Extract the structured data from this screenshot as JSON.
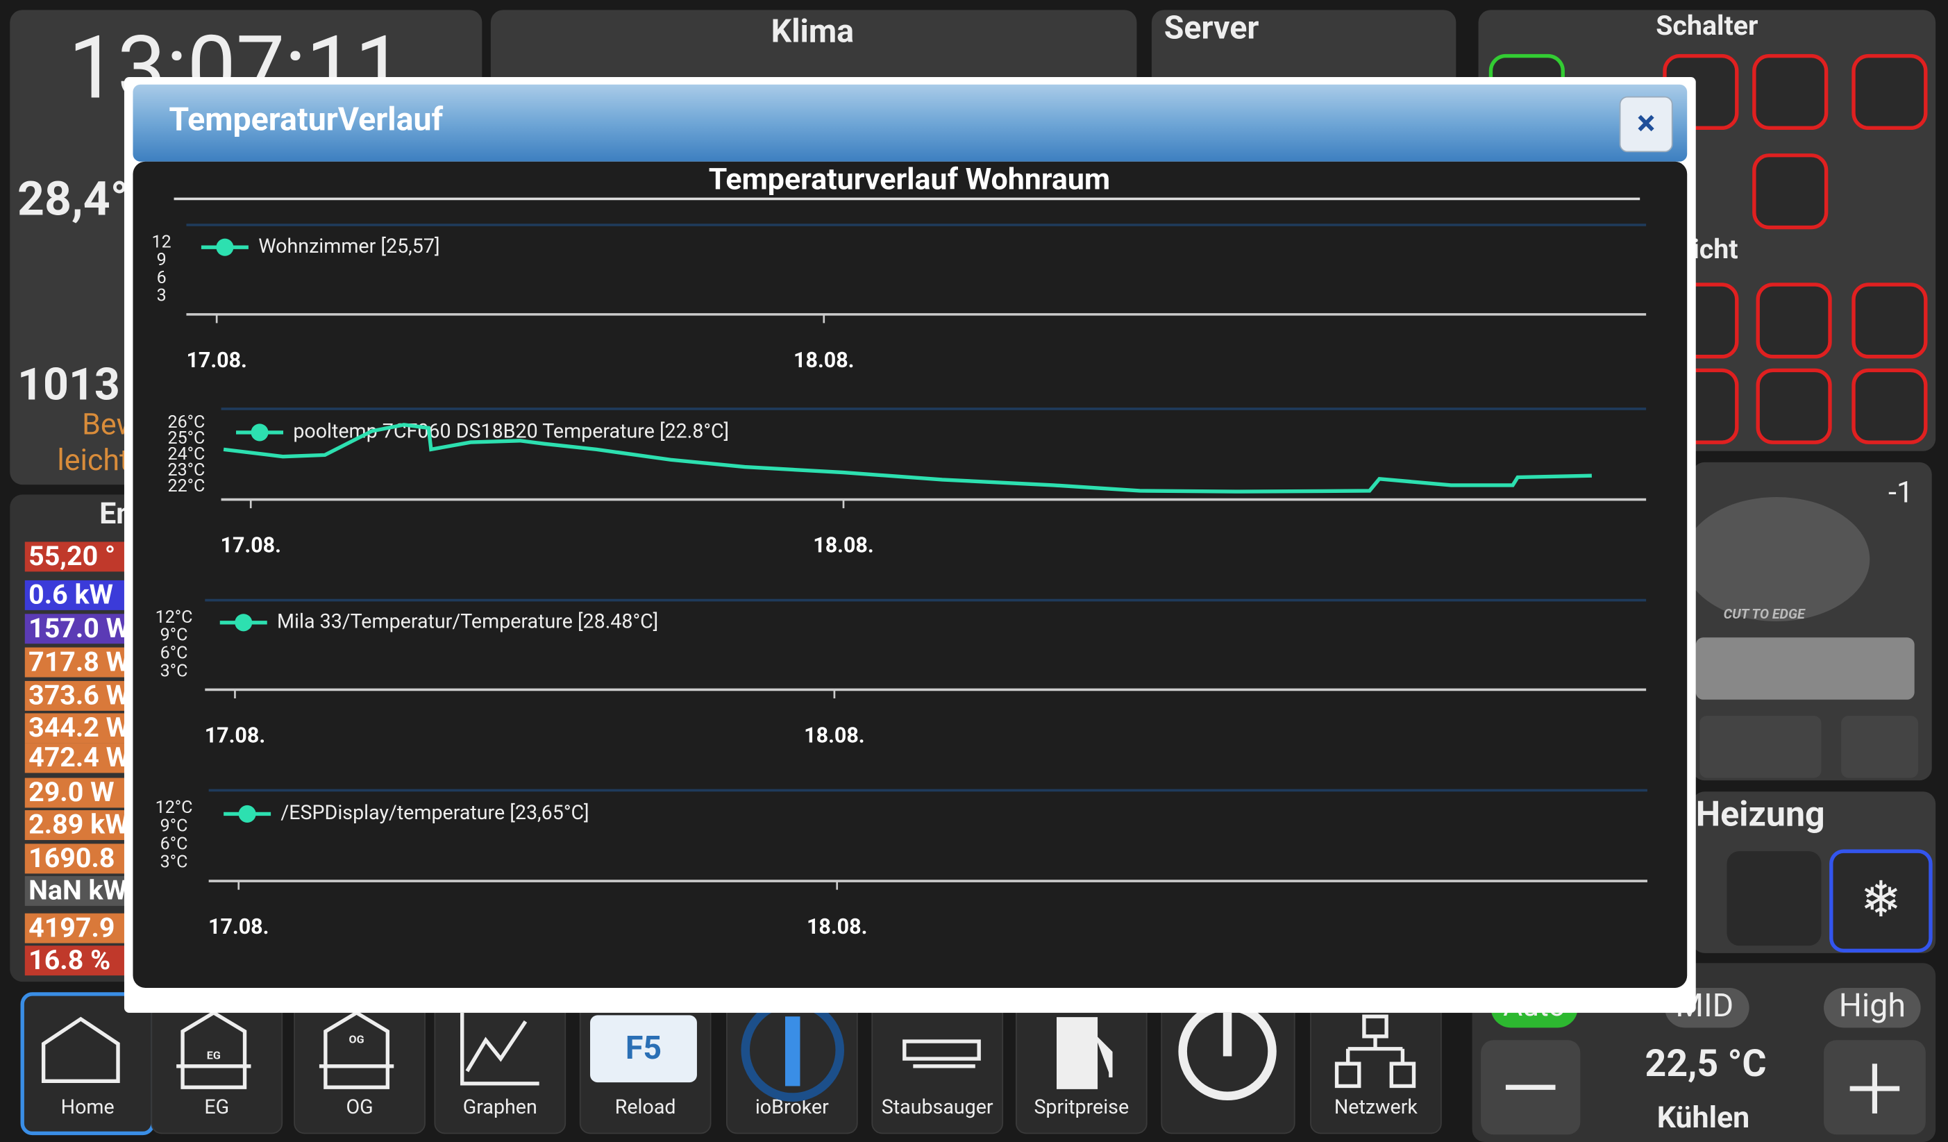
{
  "dashboard": {
    "clock": "13:07:11",
    "outdoor_temp": "28,4°",
    "pressure": "1013",
    "weather": [
      "Bew",
      "leicht"
    ],
    "energy_title": "En",
    "energy": [
      "55,20 °",
      "0.6 kW",
      "157.0 W",
      "717.8 W",
      "373.6 W",
      "344.2 W",
      "472.4 W",
      "29.0 W",
      "2.89 kW",
      "1690.8",
      "NaN kW",
      "4197.9",
      "16.8 %"
    ],
    "klima": "Klima",
    "server": "Server",
    "schalter": "Schalter",
    "licht": "icht",
    "mower_level": "-1",
    "mower_brand": "CUT TO EDGE",
    "heizung": "Heizung",
    "fan": [
      "Auto",
      "MID",
      "High"
    ],
    "setpoint": "22,5 °C",
    "mode": "Kühlen"
  },
  "nav": {
    "labels": [
      "Home",
      "EG",
      "OG",
      "Graphen",
      "Reload",
      "ioBroker",
      "Staubsauger",
      "Spritpreise",
      "Netzwerk"
    ],
    "reload_key": "F5",
    "icon_eg": "EG",
    "icon_og": "OG"
  },
  "modal": {
    "title": "TemperaturVerlauf",
    "close": "×",
    "chart_title": "Temperaturverlauf Wohnraum"
  },
  "chart_data": [
    {
      "type": "line",
      "series": [
        {
          "name": "Wohnzimmer [25,57]",
          "color": "#2de0b0"
        }
      ],
      "xlim": [
        -1.2,
        56.5
      ],
      "xticks": [
        {
          "value": 0,
          "label": "17.08."
        },
        {
          "value": 24,
          "label": "18.08."
        }
      ],
      "ylim": [
        0,
        15
      ],
      "yticks": [
        3,
        6,
        9,
        12
      ]
    },
    {
      "type": "line",
      "series": [
        {
          "name": "pooltemp 7CF060 DS18B20  Temperature [22.8°C]",
          "color": "#2de0b0",
          "x": [
            -1.1,
            1.3,
            3.0,
            4.9,
            6.2,
            7.2,
            7.3,
            8.9,
            10.9,
            11.9,
            14.0,
            17.0,
            20.0,
            24.0,
            28.0,
            32.5,
            36.0,
            40.1,
            45.3,
            45.7,
            48.6,
            51.1,
            51.3,
            54.3
          ],
          "values": [
            24.35,
            23.9,
            24.0,
            25.5,
            25.9,
            25.7,
            24.35,
            24.8,
            24.9,
            24.7,
            24.35,
            23.7,
            23.25,
            22.9,
            22.45,
            22.1,
            21.75,
            21.7,
            21.75,
            22.5,
            22.1,
            22.1,
            22.6,
            22.7
          ]
        }
      ],
      "xlim": [
        -1.2,
        56.5
      ],
      "xticks": [
        {
          "value": 0,
          "label": "17.08."
        },
        {
          "value": 24,
          "label": "18.08."
        }
      ],
      "ylim": [
        21.2,
        26.9
      ],
      "yticks": [
        {
          "value": 22,
          "label": "22°C"
        },
        {
          "value": 23,
          "label": "23°C"
        },
        {
          "value": 24,
          "label": "24°C"
        },
        {
          "value": 25,
          "label": "25°C"
        },
        {
          "value": 26,
          "label": "26°C"
        }
      ]
    },
    {
      "type": "line",
      "series": [
        {
          "name": "Mila 33/Temperatur/Temperature [28.48°C]",
          "color": "#2de0b0"
        }
      ],
      "xlim": [
        -1.2,
        56.5
      ],
      "xticks": [
        {
          "value": 0,
          "label": "17.08."
        },
        {
          "value": 24,
          "label": "18.08."
        }
      ],
      "ylim": [
        0,
        15
      ],
      "yticks": [
        {
          "value": 3,
          "label": "3°C"
        },
        {
          "value": 6,
          "label": "6°C"
        },
        {
          "value": 9,
          "label": "9°C"
        },
        {
          "value": 12,
          "label": "12°C"
        }
      ]
    },
    {
      "type": "line",
      "series": [
        {
          "name": "/ESPDisplay/temperature [23,65°C]",
          "color": "#2de0b0"
        }
      ],
      "xlim": [
        -1.2,
        56.5
      ],
      "xticks": [
        {
          "value": 0,
          "label": "17.08."
        },
        {
          "value": 24,
          "label": "18.08."
        }
      ],
      "ylim": [
        0,
        15
      ],
      "yticks": [
        {
          "value": 3,
          "label": "3°C"
        },
        {
          "value": 6,
          "label": "6°C"
        },
        {
          "value": 9,
          "label": "9°C"
        },
        {
          "value": 12,
          "label": "12°C"
        }
      ]
    }
  ]
}
